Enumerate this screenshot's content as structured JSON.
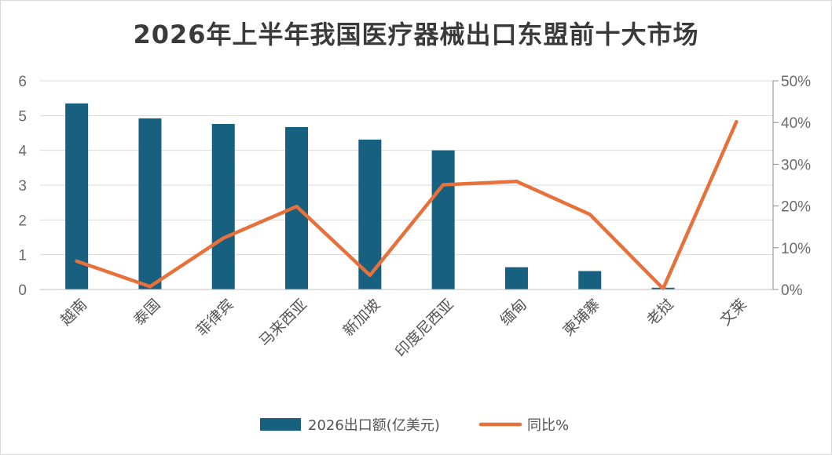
{
  "chart_data": {
    "type": "bar",
    "title": "2026年上半年我国医疗器械出口东盟前十大市场",
    "categories": [
      "越南",
      "泰国",
      "菲律宾",
      "马来西亚",
      "新加坡",
      "印度尼西亚",
      "缅甸",
      "柬埔寨",
      "老挝",
      "文莱"
    ],
    "series": [
      {
        "name": "2026出口额(亿美元)",
        "type": "bar",
        "axis": "left",
        "color": "#17607f",
        "values": [
          5.35,
          4.92,
          4.76,
          4.67,
          4.31,
          4.0,
          0.64,
          0.53,
          0.05,
          0.0
        ]
      },
      {
        "name": "同比%",
        "type": "line",
        "axis": "right",
        "color": "#e8703a",
        "values": [
          6.8,
          0.7,
          12.3,
          19.9,
          3.4,
          25.1,
          25.9,
          18.0,
          0.2,
          40.2
        ]
      }
    ],
    "y_left": {
      "min": 0,
      "max": 6,
      "ticks": [
        "0",
        "1",
        "2",
        "3",
        "4",
        "5",
        "6"
      ]
    },
    "y_right": {
      "min": 0,
      "max": 50,
      "ticks": [
        "0%",
        "10%",
        "20%",
        "30%",
        "40%",
        "50%"
      ]
    },
    "grid": true,
    "legend": "bottom"
  }
}
